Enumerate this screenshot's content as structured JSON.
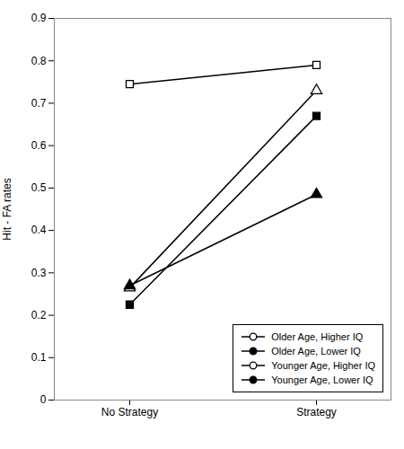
{
  "chart_data": {
    "type": "line",
    "categories": [
      "No Strategy",
      "Strategy"
    ],
    "series": [
      {
        "name": "Older Age, Higher IQ",
        "color": "#000000",
        "marker": "triangle-open",
        "values": [
          0.265,
          0.73
        ]
      },
      {
        "name": "Older Age, Lower IQ",
        "color": "#000000",
        "marker": "triangle",
        "values": [
          0.27,
          0.485
        ]
      },
      {
        "name": "Younger Age, Higher IQ",
        "color": "#000000",
        "marker": "square-open",
        "values": [
          0.745,
          0.79
        ]
      },
      {
        "name": "Younger Age, Lower IQ",
        "color": "#000000",
        "marker": "square",
        "values": [
          0.225,
          0.67
        ]
      }
    ],
    "ylabel": "Hit - FA rates",
    "ylim": [
      0,
      0.9
    ],
    "yticks": [
      0,
      0.1,
      0.2,
      0.3,
      0.4,
      0.5,
      0.6,
      0.7,
      0.8,
      0.9
    ],
    "grid": false,
    "legend": "lower right"
  }
}
